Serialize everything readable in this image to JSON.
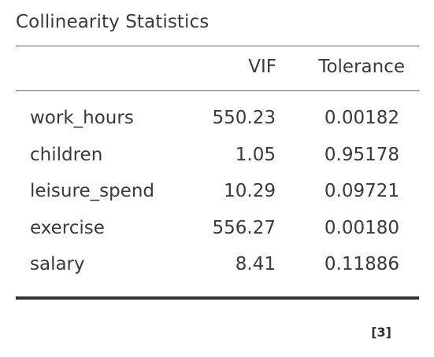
{
  "table": {
    "title": "Collinearity Statistics",
    "columns": [
      "VIF",
      "Tolerance"
    ],
    "rows": [
      {
        "name": "work_hours",
        "vif": "550.23",
        "tolerance": "0.00182"
      },
      {
        "name": "children",
        "vif": "1.05",
        "tolerance": "0.95178"
      },
      {
        "name": "leisure_spend",
        "vif": "10.29",
        "tolerance": "0.09721"
      },
      {
        "name": "exercise",
        "vif": "556.27",
        "tolerance": "0.00180"
      },
      {
        "name": "salary",
        "vif": "8.41",
        "tolerance": "0.11886"
      }
    ],
    "footnote": "[3]"
  }
}
